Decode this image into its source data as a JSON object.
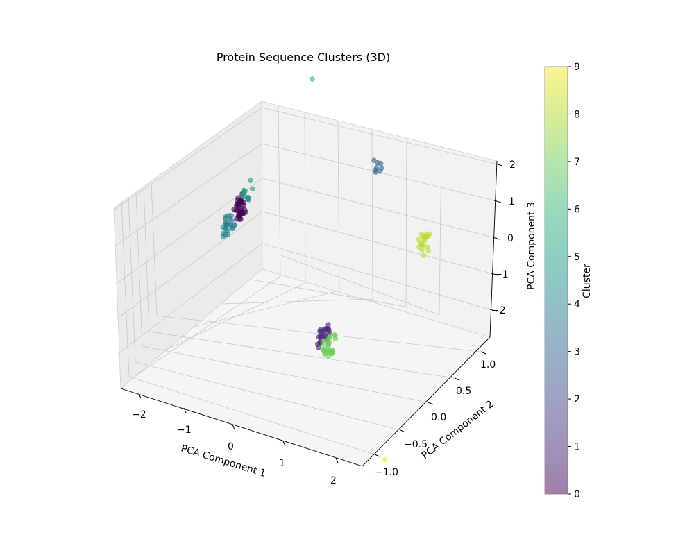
{
  "chart_data": {
    "type": "scatter",
    "projection": "3d",
    "title": "Protein Sequence Clusters (3D)",
    "xlabel": "PCA Component 1",
    "ylabel": "PCA Component 2",
    "zlabel": "PCA Component 3",
    "colorbar_label": "Cluster",
    "colormap": "viridis",
    "marker_alpha": 0.5,
    "grid": true,
    "xlim": [
      -2.3,
      2.3
    ],
    "ylim": [
      -1.2,
      1.2
    ],
    "zlim": [
      -2.5,
      2.0
    ],
    "clim": [
      0,
      9
    ],
    "x_ticks": [
      "−2",
      "−1",
      "0",
      "1",
      "2"
    ],
    "y_ticks": [
      "−1.0",
      "−0.5",
      "0.0",
      "0.5",
      "1.0"
    ],
    "z_ticks": [
      "−2",
      "−1",
      "0",
      "1",
      "2"
    ],
    "colorbar_ticks": [
      "0",
      "1",
      "2",
      "3",
      "4",
      "5",
      "6",
      "7",
      "8",
      "9"
    ],
    "clusters": [
      {
        "cluster": 0,
        "center": [
          -2.0,
          0.5,
          0.1
        ],
        "count": 40
      },
      {
        "cluster": 1,
        "center": [
          0.2,
          0.0,
          -1.6
        ],
        "count": 25
      },
      {
        "cluster": 3,
        "center": [
          0.0,
          1.0,
          1.5
        ],
        "count": 8
      },
      {
        "cluster": 4,
        "center": [
          -2.0,
          0.3,
          -0.1
        ],
        "count": 25
      },
      {
        "cluster": 5,
        "center": [
          -2.0,
          0.6,
          0.4
        ],
        "count": 12
      },
      {
        "cluster": 6,
        "center": [
          -1.5,
          1.2,
          2.7
        ],
        "count": 1
      },
      {
        "cluster": 7,
        "center": [
          0.3,
          0.0,
          -1.8
        ],
        "count": 30
      },
      {
        "cluster": 8,
        "center": [
          1.6,
          0.4,
          0.9
        ],
        "count": 20
      },
      {
        "cluster": 9,
        "center": [
          2.5,
          -1.0,
          -2.5
        ],
        "count": 1
      }
    ]
  }
}
